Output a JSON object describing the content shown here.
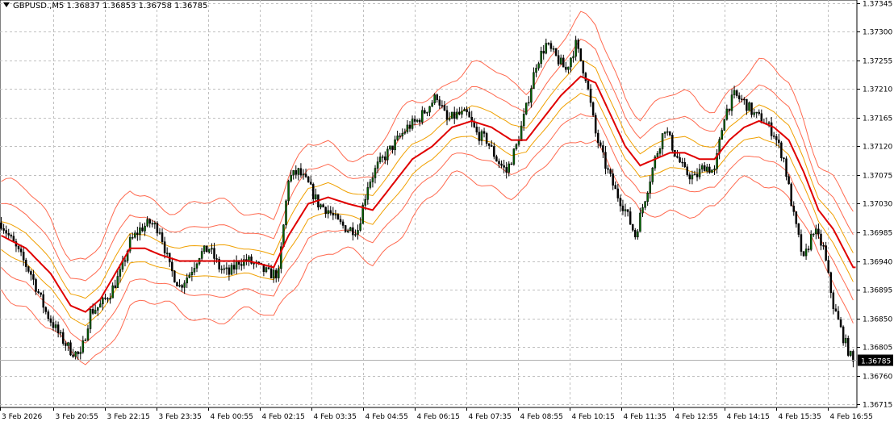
{
  "header": {
    "symbol": "GBPUSD.,M5",
    "ohlc": "1.36837 1.36853 1.36758 1.36785"
  },
  "colors": {
    "background": "#ffffff",
    "grid": "#c0c0c0",
    "candle": "#000000",
    "bull_body": "#006400",
    "bear_body": "#000000",
    "mid_line": "#e00000",
    "inner_band": "#f0a000",
    "outer_band": "#ff6a50",
    "price_marker": "#000000"
  },
  "chart_data": {
    "type": "candlestick",
    "symbol": "GBPUSD.",
    "timeframe": "M5",
    "ylim": [
      1.3671,
      1.3735
    ],
    "grid": true,
    "y_ticks": [
      "1.37345",
      "1.37300",
      "1.37255",
      "1.37210",
      "1.37165",
      "1.37120",
      "1.37075",
      "1.37030",
      "1.36985",
      "1.36940",
      "1.36895",
      "1.36850",
      "1.36805",
      "1.36760",
      "1.36715"
    ],
    "x_ticks": [
      "3 Feb 2026",
      "3 Feb 20:55",
      "3 Feb 22:15",
      "3 Feb 23:35",
      "4 Feb 00:55",
      "4 Feb 02:15",
      "4 Feb 03:35",
      "4 Feb 04:55",
      "4 Feb 06:15",
      "4 Feb 07:35",
      "4 Feb 08:55",
      "4 Feb 10:15",
      "4 Feb 11:35",
      "4 Feb 12:55",
      "4 Feb 14:15",
      "4 Feb 15:35",
      "4 Feb 16:55"
    ],
    "current_price": "1.36785",
    "close_path": [
      [
        0,
        1.37
      ],
      [
        6,
        1.3696
      ],
      [
        12,
        1.3692
      ],
      [
        18,
        1.3686
      ],
      [
        24,
        1.3682
      ],
      [
        28,
        1.368
      ],
      [
        32,
        1.3679
      ],
      [
        36,
        1.3686
      ],
      [
        40,
        1.3687
      ],
      [
        44,
        1.3689
      ],
      [
        48,
        1.3692
      ],
      [
        52,
        1.3697
      ],
      [
        56,
        1.3699
      ],
      [
        60,
        1.37
      ],
      [
        64,
        1.3699
      ],
      [
        68,
        1.3693
      ],
      [
        72,
        1.369
      ],
      [
        76,
        1.3692
      ],
      [
        80,
        1.3695
      ],
      [
        84,
        1.3696
      ],
      [
        88,
        1.3693
      ],
      [
        92,
        1.3692
      ],
      [
        96,
        1.3694
      ],
      [
        100,
        1.3694
      ],
      [
        104,
        1.3693
      ],
      [
        108,
        1.3692
      ],
      [
        112,
        1.3692
      ],
      [
        116,
        1.3707
      ],
      [
        120,
        1.3708
      ],
      [
        124,
        1.3706
      ],
      [
        128,
        1.3703
      ],
      [
        132,
        1.3702
      ],
      [
        136,
        1.37
      ],
      [
        140,
        1.3699
      ],
      [
        144,
        1.3699
      ],
      [
        148,
        1.3706
      ],
      [
        152,
        1.3709
      ],
      [
        156,
        1.3711
      ],
      [
        160,
        1.3713
      ],
      [
        164,
        1.3715
      ],
      [
        168,
        1.3716
      ],
      [
        172,
        1.3718
      ],
      [
        176,
        1.372
      ],
      [
        180,
        1.3716
      ],
      [
        184,
        1.3717
      ],
      [
        188,
        1.3717
      ],
      [
        192,
        1.3714
      ],
      [
        196,
        1.3713
      ],
      [
        200,
        1.371
      ],
      [
        204,
        1.3708
      ],
      [
        208,
        1.3712
      ],
      [
        212,
        1.3718
      ],
      [
        216,
        1.3725
      ],
      [
        220,
        1.3728
      ],
      [
        224,
        1.3726
      ],
      [
        228,
        1.3724
      ],
      [
        232,
        1.3728
      ],
      [
        236,
        1.3723
      ],
      [
        240,
        1.3714
      ],
      [
        244,
        1.3709
      ],
      [
        248,
        1.3705
      ],
      [
        252,
        1.3702
      ],
      [
        256,
        1.3698
      ],
      [
        260,
        1.3704
      ],
      [
        264,
        1.371
      ],
      [
        268,
        1.3715
      ],
      [
        272,
        1.3711
      ],
      [
        276,
        1.3708
      ],
      [
        280,
        1.3707
      ],
      [
        284,
        1.3709
      ],
      [
        288,
        1.3708
      ],
      [
        292,
        1.3717
      ],
      [
        296,
        1.372
      ],
      [
        300,
        1.3719
      ],
      [
        304,
        1.3717
      ],
      [
        308,
        1.3716
      ],
      [
        312,
        1.3714
      ],
      [
        316,
        1.371
      ],
      [
        320,
        1.3701
      ],
      [
        324,
        1.3694
      ],
      [
        328,
        1.3699
      ],
      [
        332,
        1.3696
      ],
      [
        336,
        1.3687
      ],
      [
        340,
        1.3682
      ],
      [
        344,
        1.3678
      ]
    ],
    "mid_line": [
      [
        0,
        1.3698
      ],
      [
        10,
        1.3696
      ],
      [
        20,
        1.3692
      ],
      [
        28,
        1.3687
      ],
      [
        34,
        1.3686
      ],
      [
        40,
        1.3688
      ],
      [
        46,
        1.3692
      ],
      [
        52,
        1.3696
      ],
      [
        58,
        1.3696
      ],
      [
        64,
        1.3695
      ],
      [
        72,
        1.3694
      ],
      [
        80,
        1.3694
      ],
      [
        90,
        1.3694
      ],
      [
        100,
        1.3694
      ],
      [
        110,
        1.3693
      ],
      [
        116,
        1.3698
      ],
      [
        124,
        1.3703
      ],
      [
        132,
        1.3704
      ],
      [
        140,
        1.3703
      ],
      [
        150,
        1.3702
      ],
      [
        158,
        1.3706
      ],
      [
        166,
        1.371
      ],
      [
        174,
        1.3712
      ],
      [
        182,
        1.3715
      ],
      [
        190,
        1.3716
      ],
      [
        198,
        1.3715
      ],
      [
        206,
        1.3713
      ],
      [
        212,
        1.3713
      ],
      [
        218,
        1.3716
      ],
      [
        226,
        1.372
      ],
      [
        234,
        1.3723
      ],
      [
        240,
        1.3722
      ],
      [
        246,
        1.3717
      ],
      [
        252,
        1.3712
      ],
      [
        258,
        1.3709
      ],
      [
        264,
        1.371
      ],
      [
        270,
        1.3711
      ],
      [
        276,
        1.3711
      ],
      [
        282,
        1.371
      ],
      [
        288,
        1.371
      ],
      [
        294,
        1.3713
      ],
      [
        300,
        1.3715
      ],
      [
        306,
        1.3716
      ],
      [
        312,
        1.3715
      ],
      [
        318,
        1.3713
      ],
      [
        324,
        1.3708
      ],
      [
        330,
        1.3702
      ],
      [
        336,
        1.3699
      ],
      [
        344,
        1.3693
      ]
    ]
  }
}
